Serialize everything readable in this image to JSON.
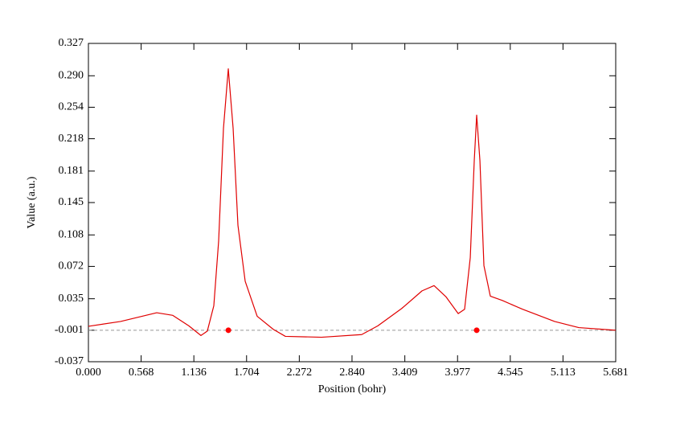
{
  "chart_data": {
    "type": "line",
    "xlabel": "Position (bohr)",
    "ylabel": "Value (a.u.)",
    "x": [
      0,
      0.346,
      0.736,
      0.909,
      1.082,
      1.212,
      1.281,
      1.351,
      1.403,
      1.455,
      1.507,
      1.559,
      1.611,
      1.689,
      1.818,
      1.992,
      2.122,
      2.511,
      2.944,
      3.118,
      3.377,
      3.594,
      3.724,
      3.854,
      3.984,
      4.053,
      4.114,
      4.157,
      4.183,
      4.218,
      4.261,
      4.33,
      4.46,
      4.677,
      5.023,
      5.283,
      5.681
    ],
    "series": [
      {
        "color": "#e00000",
        "values": [
          0.0035,
          0.009,
          0.019,
          0.016,
          0.004,
          -0.007,
          -0.002,
          0.027,
          0.101,
          0.23,
          0.298,
          0.23,
          0.119,
          0.055,
          0.015,
          0.0,
          -0.008,
          -0.009,
          -0.006,
          0.004,
          0.024,
          0.044,
          0.05,
          0.037,
          0.018,
          0.023,
          0.082,
          0.193,
          0.245,
          0.193,
          0.073,
          0.038,
          0.033,
          0.023,
          0.009,
          0.002,
          -0.001
        ]
      }
    ],
    "reference_line": -0.001,
    "points": {
      "x": [
        1.508,
        4.183
      ],
      "y": [
        -0.001,
        -0.001
      ],
      "color": "#ff0000"
    },
    "xlim": [
      0,
      5.681
    ],
    "ylim": [
      -0.037,
      0.327
    ],
    "xticks": [
      {
        "value": 0,
        "label": "0.000"
      },
      0.568,
      1.136,
      1.704,
      2.272,
      {
        "value": 2.84,
        "label": "2.840"
      },
      3.409,
      3.977,
      4.545,
      5.113,
      5.681
    ],
    "yticks": [
      -0.037,
      -0.001,
      0.035,
      0.072,
      0.108,
      0.145,
      0.181,
      0.218,
      0.254,
      {
        "value": 0.29,
        "label": "0.290"
      },
      0.327
    ]
  }
}
